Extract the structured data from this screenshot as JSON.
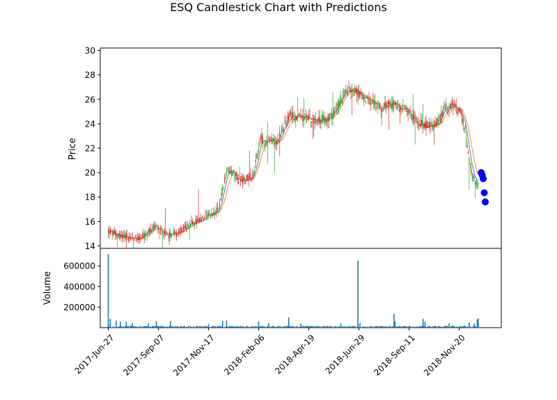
{
  "chart_data": {
    "type": "candlestick",
    "title": "ESQ Candlestick Chart with Predictions",
    "price_panel": {
      "ylabel": "Price",
      "ylim": [
        13.8,
        30.2
      ],
      "yticks": [
        14,
        16,
        18,
        20,
        22,
        24,
        26,
        28,
        30
      ],
      "up_color": "#2ca02c",
      "down_color": "#d62728",
      "ma_colors": [
        "#1f77b4",
        "#ff7f0e"
      ],
      "prediction_color": "#0000ff",
      "anchors": [
        [
          0,
          15.2
        ],
        [
          10,
          14.9
        ],
        [
          20,
          14.75
        ],
        [
          30,
          14.6
        ],
        [
          38,
          14.9
        ],
        [
          44,
          15.6
        ],
        [
          48,
          15.5
        ],
        [
          54,
          15.0
        ],
        [
          62,
          14.9
        ],
        [
          70,
          15.1
        ],
        [
          76,
          15.5
        ],
        [
          82,
          15.8
        ],
        [
          88,
          16.0
        ],
        [
          96,
          16.2
        ],
        [
          104,
          16.6
        ],
        [
          110,
          17.0
        ],
        [
          114,
          18.5
        ],
        [
          118,
          20.1
        ],
        [
          122,
          20.2
        ],
        [
          130,
          19.4
        ],
        [
          138,
          19.5
        ],
        [
          144,
          19.8
        ],
        [
          148,
          21.0
        ],
        [
          152,
          23.0
        ],
        [
          156,
          22.3
        ],
        [
          162,
          22.6
        ],
        [
          168,
          22.6
        ],
        [
          174,
          23.5
        ],
        [
          180,
          24.6
        ],
        [
          190,
          24.6
        ],
        [
          200,
          24.5
        ],
        [
          210,
          24.3
        ],
        [
          218,
          24.4
        ],
        [
          224,
          24.7
        ],
        [
          230,
          25.6
        ],
        [
          236,
          26.5
        ],
        [
          242,
          26.8
        ],
        [
          250,
          26.5
        ],
        [
          256,
          26.1
        ],
        [
          262,
          25.7
        ],
        [
          268,
          25.4
        ],
        [
          274,
          25.3
        ],
        [
          282,
          25.6
        ],
        [
          290,
          25.4
        ],
        [
          298,
          25.1
        ],
        [
          304,
          24.5
        ],
        [
          310,
          24.0
        ],
        [
          318,
          23.9
        ],
        [
          324,
          23.7
        ],
        [
          330,
          24.4
        ],
        [
          336,
          25.3
        ],
        [
          342,
          25.5
        ],
        [
          348,
          25.2
        ],
        [
          352,
          24.8
        ],
        [
          356,
          23.5
        ],
        [
          359,
          21.5
        ],
        [
          362,
          20.0
        ],
        [
          366,
          19.2
        ],
        [
          369,
          19.0
        ]
      ],
      "predictions": [
        {
          "index": 372,
          "value": 20.0
        },
        {
          "index": 373,
          "value": 19.8
        },
        {
          "index": 374,
          "value": 19.5
        },
        {
          "index": 375,
          "value": 18.35
        },
        {
          "index": 376,
          "value": 17.6
        }
      ]
    },
    "volume_panel": {
      "ylabel": "Volume",
      "ylim": [
        0,
        770000
      ],
      "yticks": [
        200000,
        400000,
        600000
      ],
      "ytick_labels": [
        "200000",
        "400000",
        "600000"
      ],
      "bar_color": "#1f77b4",
      "baseline_volume": 9000,
      "spikes": [
        {
          "index": 0,
          "value": 715000
        },
        {
          "index": 2,
          "value": 85000
        },
        {
          "index": 8,
          "value": 70000
        },
        {
          "index": 12,
          "value": 60000
        },
        {
          "index": 18,
          "value": 55000
        },
        {
          "index": 24,
          "value": 45000
        },
        {
          "index": 40,
          "value": 40000
        },
        {
          "index": 48,
          "value": 60000
        },
        {
          "index": 62,
          "value": 65000
        },
        {
          "index": 100,
          "value": 35000
        },
        {
          "index": 114,
          "value": 65000
        },
        {
          "index": 118,
          "value": 70000
        },
        {
          "index": 150,
          "value": 60000
        },
        {
          "index": 160,
          "value": 45000
        },
        {
          "index": 180,
          "value": 100000
        },
        {
          "index": 192,
          "value": 40000
        },
        {
          "index": 232,
          "value": 40000
        },
        {
          "index": 249,
          "value": 650000
        },
        {
          "index": 251,
          "value": 45000
        },
        {
          "index": 285,
          "value": 135000
        },
        {
          "index": 286,
          "value": 60000
        },
        {
          "index": 314,
          "value": 85000
        },
        {
          "index": 316,
          "value": 60000
        },
        {
          "index": 340,
          "value": 40000
        },
        {
          "index": 360,
          "value": 50000
        },
        {
          "index": 365,
          "value": 40000
        },
        {
          "index": 368,
          "value": 80000
        },
        {
          "index": 369,
          "value": 90000
        }
      ]
    },
    "x_axis": {
      "n_points": 377,
      "xlim": [
        -8,
        392
      ],
      "tick_indices": [
        0,
        50,
        100,
        150,
        200,
        250,
        300,
        350
      ],
      "tick_labels": [
        "2017-Jun-27",
        "2017-Sep-07",
        "2017-Nov-17",
        "2018-Feb-06",
        "2018-Apr-19",
        "2018-Jun-29",
        "2018-Sep-11",
        "2018-Nov-20"
      ]
    }
  }
}
